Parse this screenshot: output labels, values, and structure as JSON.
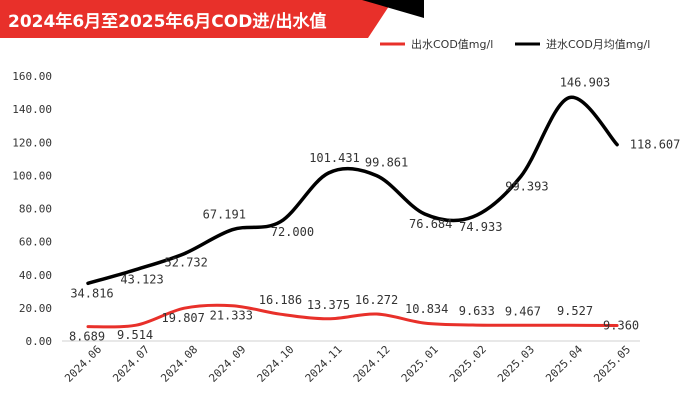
{
  "chart_data": {
    "type": "line",
    "title": "2024年6月至2025年6月COD进/出水值",
    "categories": [
      "2024.06",
      "2024.07",
      "2024.08",
      "2024.09",
      "2024.10",
      "2024.11",
      "2024.12",
      "2025.01",
      "2025.02",
      "2025.03",
      "2025.04",
      "2025.05"
    ],
    "ylim": [
      0,
      160
    ],
    "yticks": [
      "0.00",
      "20.00",
      "40.00",
      "60.00",
      "80.00",
      "100.00",
      "120.00",
      "140.00",
      "160.00"
    ],
    "grid": false,
    "legend_position": "top-right",
    "series": [
      {
        "name": "出水COD值mg/l",
        "color": "#e8302a",
        "values": [
          8.689,
          9.514,
          19.807,
          21.333,
          16.186,
          13.375,
          16.272,
          10.834,
          9.633,
          9.467,
          9.527,
          9.36
        ],
        "labels": [
          "8.689",
          "9.514",
          "19.807",
          "21.333",
          "16.186",
          "13.375",
          "16.272",
          "10.834",
          "9.633",
          "9.467",
          "9.527",
          "9.360"
        ]
      },
      {
        "name": "进水COD月均值mg/l",
        "color": "#000000",
        "values": [
          34.816,
          43.123,
          52.732,
          67.191,
          72.0,
          101.431,
          99.861,
          76.684,
          74.933,
          99.393,
          146.903,
          118.607
        ],
        "labels": [
          "34.816",
          "43.123",
          "52.732",
          "67.191",
          "72.000",
          "101.431",
          "99.861",
          "76.684",
          "74.933",
          "99.393",
          "146.903",
          "118.607"
        ]
      }
    ]
  }
}
